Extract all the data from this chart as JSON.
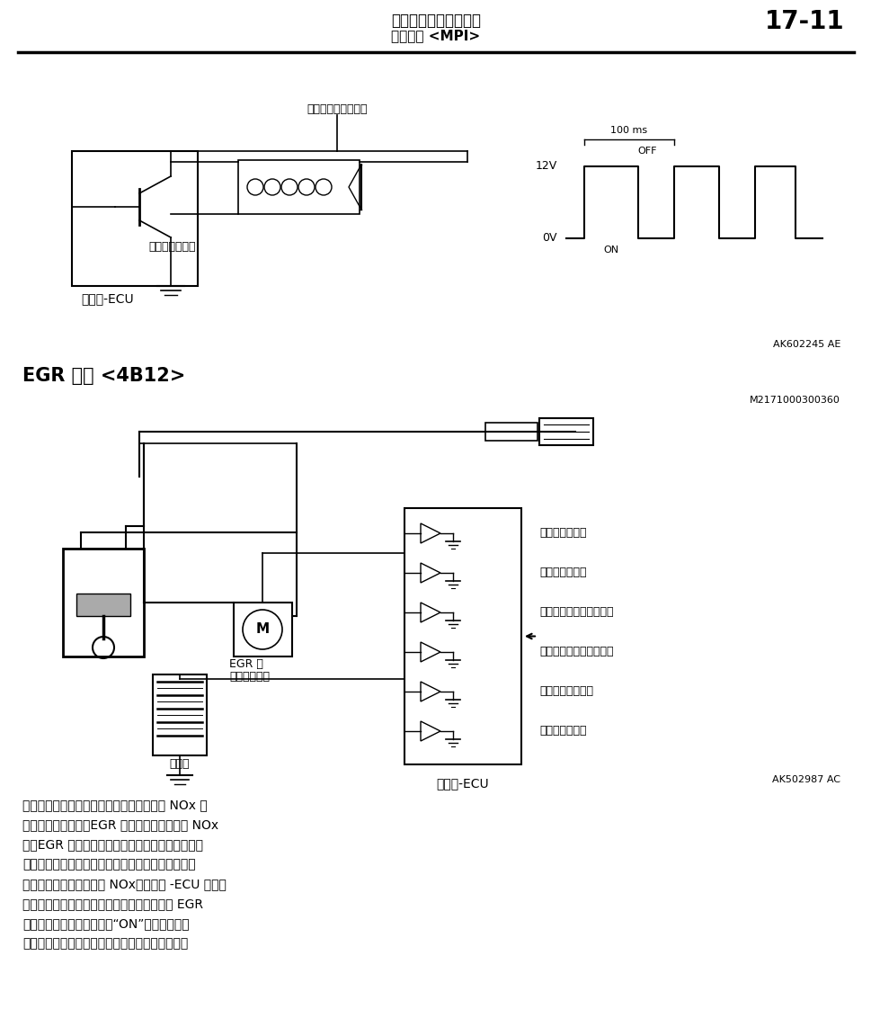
{
  "page_width": 9.7,
  "page_height": 11.52,
  "bg_color": "#ffffff",
  "header_title1": "发动机和排放控制系统",
  "header_title2": "排放控制 <MPI>",
  "header_number": "17-11",
  "section_title": "EGR 系统 <4B12>",
  "ref1": "AK602245 AE",
  "ref2": "M2171000300360",
  "ref3": "AK502987 AC",
  "label_relay": "自发动机控制继电器",
  "label_solenoid": "净化控制电磁阀",
  "label_ecu1": "发动机-ECU",
  "label_ecu2": "发动机-ECU",
  "label_12v": "12V",
  "label_0v": "0V",
  "label_on": "ON",
  "label_off": "OFF",
  "label_100ms": "100 ms",
  "label_egr_line1": "EGR 阀",
  "label_egr_line2": "（步进电机）",
  "label_battery": "蓄电池",
  "sensors": [
    "空气流量传感器",
    "进气温度传感器",
    "进气歧管绝对压力传感器",
    "发动机冷却液温度传感器",
    "节气门位置传感器",
    "曲轴角度传感器"
  ],
  "para_line1": "燃烧气体温度较高时，会对环境造成污染的 NOx 的",
  "para_line2": "产生也会迅速增加。EGR 系统用于降低生成的 NOx",
  "para_line3": "量。EGR 系统使进气歧管内部的排气进行再循环。",
  "para_line4": "它提高了燃烧气体的单位热量，减小降低燃烧温度的",
  "para_line5": "燃烧速度并减少了产生的 NOx。发动机 -ECU 根据发",
  "para_line6": "动机工况计算排气再循环的引入量并优化控制 EGR",
  "para_line7": "阀开度。此外，在点火开关“ON”信号输入后不",
  "para_line8": "久，它驱动完全关闭的步进电机，并执行初始化。"
}
